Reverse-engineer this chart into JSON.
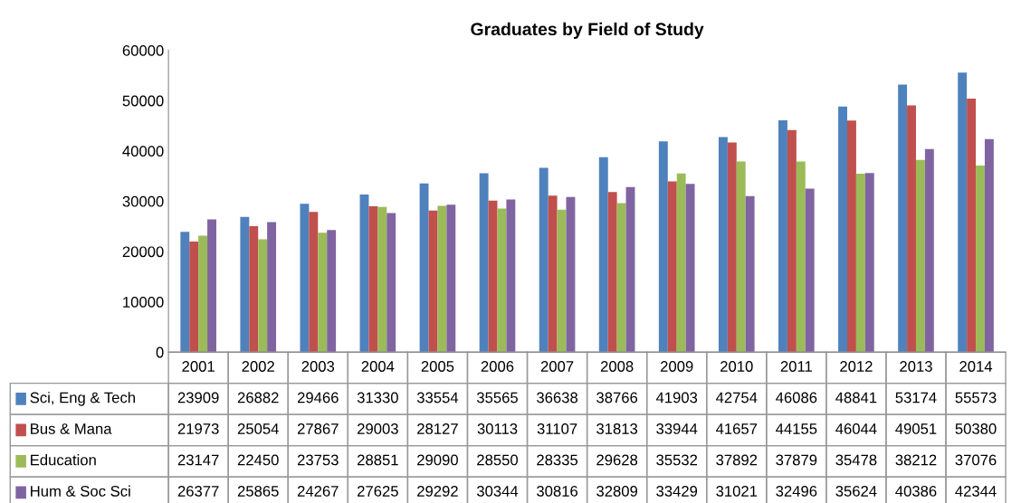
{
  "chart_data": {
    "type": "bar",
    "title": "Graduates by Field of Study",
    "categories": [
      "2001",
      "2002",
      "2003",
      "2004",
      "2005",
      "2006",
      "2007",
      "2008",
      "2009",
      "2010",
      "2011",
      "2012",
      "2013",
      "2014"
    ],
    "series": [
      {
        "name": "Sci, Eng & Tech",
        "color": "#4f81bd",
        "values": [
          23909,
          26882,
          29466,
          31330,
          33554,
          35565,
          36638,
          38766,
          41903,
          42754,
          46086,
          48841,
          53174,
          55573
        ]
      },
      {
        "name": "Bus & Mana",
        "color": "#c0504d",
        "values": [
          21973,
          25054,
          27867,
          29003,
          28127,
          30113,
          31107,
          31813,
          33944,
          41657,
          44155,
          46044,
          49051,
          50380
        ]
      },
      {
        "name": "Education",
        "color": "#9bbb59",
        "values": [
          23147,
          22450,
          23753,
          28851,
          29090,
          28550,
          28335,
          29628,
          35532,
          37892,
          37879,
          35478,
          38212,
          37076
        ]
      },
      {
        "name": "Hum & Soc Sci",
        "color": "#8064a2",
        "values": [
          26377,
          25865,
          24267,
          27625,
          29292,
          30344,
          30816,
          32809,
          33429,
          31021,
          32496,
          35624,
          40386,
          42344
        ]
      }
    ],
    "ylim": [
      0,
      60000
    ],
    "yticks": [
      0,
      10000,
      20000,
      30000,
      40000,
      50000,
      60000
    ],
    "grid": false,
    "data_labels": true,
    "legend": "bottom"
  }
}
